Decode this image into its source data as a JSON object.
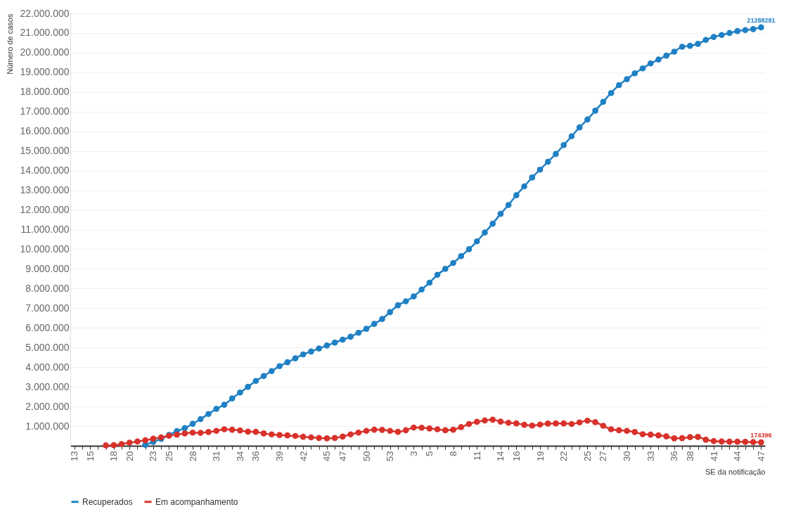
{
  "chart_data": {
    "type": "line",
    "xlabel": "SE da notificação",
    "ylabel": "Número de casos",
    "categories": [
      "13",
      null,
      "15",
      null,
      null,
      "18",
      null,
      "20",
      null,
      null,
      "23",
      null,
      "25",
      null,
      null,
      "28",
      null,
      null,
      "31",
      null,
      null,
      "34",
      null,
      "36",
      null,
      null,
      "39",
      null,
      null,
      "42",
      null,
      null,
      "45",
      null,
      "47",
      null,
      null,
      "50",
      null,
      null,
      "53",
      null,
      null,
      "3",
      null,
      "5",
      null,
      null,
      "8",
      null,
      null,
      "11",
      null,
      null,
      "14",
      null,
      "16",
      null,
      null,
      "19",
      null,
      null,
      "22",
      null,
      null,
      "25",
      null,
      "27",
      null,
      null,
      "30",
      null,
      null,
      "33",
      null,
      null,
      "36",
      null,
      "38",
      null,
      null,
      "41",
      null,
      null,
      "44",
      null,
      null,
      "47"
    ],
    "ylim": [
      0,
      22000000
    ],
    "yticks": [
      {
        "value": 1000000,
        "label": "1.000.000"
      },
      {
        "value": 2000000,
        "label": "2.000.000"
      },
      {
        "value": 3000000,
        "label": "3.000.000"
      },
      {
        "value": 4000000,
        "label": "4.000.000"
      },
      {
        "value": 5000000,
        "label": "5.000.000"
      },
      {
        "value": 6000000,
        "label": "6.000.000"
      },
      {
        "value": 7000000,
        "label": "7.000.000"
      },
      {
        "value": 8000000,
        "label": "8.000.000"
      },
      {
        "value": 9000000,
        "label": "9.000.000"
      },
      {
        "value": 10000000,
        "label": "10.000.000"
      },
      {
        "value": 11000000,
        "label": "11.000.000"
      },
      {
        "value": 12000000,
        "label": "12.000.000"
      },
      {
        "value": 13000000,
        "label": "13.000.000"
      },
      {
        "value": 14000000,
        "label": "14.000.000"
      },
      {
        "value": 15000000,
        "label": "15.000.000"
      },
      {
        "value": 16000000,
        "label": "16.000.000"
      },
      {
        "value": 17000000,
        "label": "17.000.000"
      },
      {
        "value": 18000000,
        "label": "18.000.000"
      },
      {
        "value": 19000000,
        "label": "19.000.000"
      },
      {
        "value": 20000000,
        "label": "20.000.000"
      },
      {
        "value": 21000000,
        "label": "21.000.000"
      },
      {
        "value": 22000000,
        "label": "22.000.000"
      }
    ],
    "grid": "y",
    "legend": "bottom",
    "marker": "circle",
    "line_style": "solid",
    "series": [
      {
        "name": "Recuperados",
        "color": "#1f80c4",
        "values": [
          null,
          null,
          null,
          null,
          null,
          null,
          null,
          null,
          null,
          50000,
          200000,
          350000,
          550000,
          750000,
          900000,
          1120000,
          1360000,
          1620000,
          1880000,
          2090000,
          2410000,
          2710000,
          3000000,
          3300000,
          3550000,
          3800000,
          4050000,
          4250000,
          4450000,
          4650000,
          4800000,
          4950000,
          5100000,
          5250000,
          5400000,
          5550000,
          5750000,
          5950000,
          6200000,
          6450000,
          6800000,
          7150000,
          7350000,
          7600000,
          7950000,
          8300000,
          8700000,
          9000000,
          9300000,
          9650000,
          10000000,
          10400000,
          10850000,
          11300000,
          11800000,
          12250000,
          12750000,
          13200000,
          13650000,
          14050000,
          14450000,
          14850000,
          15300000,
          15750000,
          16200000,
          16600000,
          17050000,
          17500000,
          17950000,
          18350000,
          18650000,
          18950000,
          19200000,
          19450000,
          19650000,
          19850000,
          20050000,
          20300000,
          20350000,
          20450000,
          20650000,
          20800000,
          20900000,
          21000000,
          21100000,
          21150000,
          21200000,
          21288281
        ],
        "value_labels": [
          null,
          null,
          null,
          null,
          null,
          null,
          null,
          null,
          null,
          null,
          null,
          null,
          null,
          null,
          null,
          null,
          null,
          null,
          null,
          null,
          null,
          null,
          null,
          null,
          null,
          null,
          null,
          null,
          null,
          null,
          null,
          null,
          null,
          null,
          null,
          null,
          null,
          null,
          null,
          null,
          null,
          null,
          null,
          null,
          null,
          null,
          null,
          null,
          null,
          null,
          null,
          null,
          null,
          null,
          null,
          null,
          null,
          null,
          null,
          null,
          null,
          null,
          null,
          null,
          null,
          null,
          null,
          null,
          null,
          null,
          null,
          null,
          null,
          null,
          null,
          null,
          null,
          null,
          null,
          null,
          null,
          null,
          null,
          null,
          null,
          null,
          null,
          "21288281"
        ]
      },
      {
        "name": "Em acompanhamento",
        "color": "#d9312b",
        "values": [
          null,
          null,
          null,
          null,
          20000,
          30000,
          90000,
          160000,
          220000,
          280000,
          360000,
          430000,
          510000,
          570000,
          630000,
          670000,
          660000,
          700000,
          760000,
          840000,
          820000,
          780000,
          720000,
          710000,
          630000,
          580000,
          550000,
          530000,
          500000,
          460000,
          430000,
          400000,
          380000,
          400000,
          470000,
          580000,
          670000,
          760000,
          820000,
          810000,
          760000,
          710000,
          790000,
          930000,
          920000,
          880000,
          840000,
          790000,
          820000,
          950000,
          1110000,
          1220000,
          1290000,
          1330000,
          1230000,
          1170000,
          1140000,
          1070000,
          1030000,
          1080000,
          1130000,
          1140000,
          1140000,
          1110000,
          1190000,
          1280000,
          1200000,
          1020000,
          840000,
          790000,
          760000,
          700000,
          590000,
          570000,
          530000,
          480000,
          380000,
          390000,
          440000,
          450000,
          310000,
          240000,
          220000,
          210000,
          210000,
          200000,
          190000,
          174396
        ],
        "value_labels": [
          null,
          null,
          null,
          null,
          null,
          null,
          null,
          null,
          null,
          null,
          null,
          null,
          null,
          null,
          null,
          null,
          null,
          null,
          null,
          null,
          null,
          null,
          null,
          null,
          null,
          null,
          null,
          null,
          null,
          null,
          null,
          null,
          null,
          null,
          null,
          null,
          null,
          null,
          null,
          null,
          null,
          null,
          null,
          null,
          null,
          null,
          null,
          null,
          null,
          null,
          null,
          null,
          null,
          null,
          null,
          null,
          null,
          null,
          null,
          null,
          null,
          null,
          null,
          null,
          null,
          null,
          null,
          null,
          null,
          null,
          null,
          null,
          null,
          null,
          null,
          null,
          null,
          null,
          null,
          null,
          null,
          null,
          null,
          null,
          null,
          null,
          null,
          "174396"
        ]
      }
    ]
  }
}
